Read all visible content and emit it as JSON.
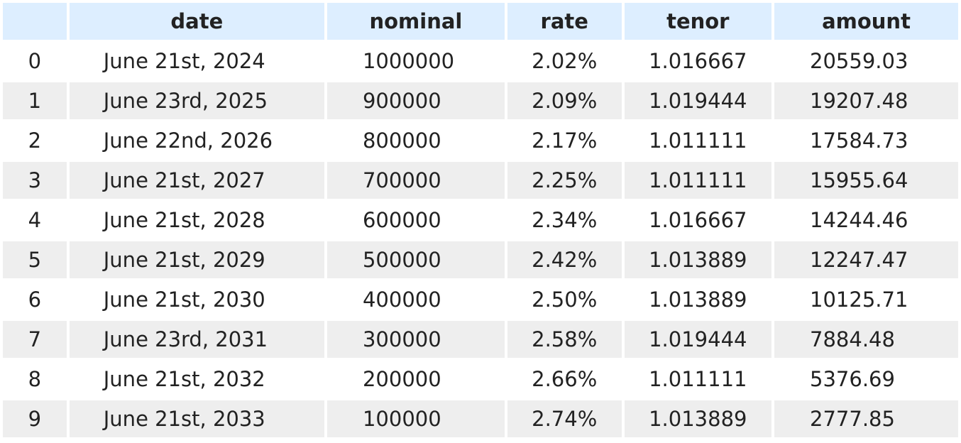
{
  "table": {
    "columns": [
      "",
      "date",
      "nominal",
      "rate",
      "tenor",
      "amount"
    ],
    "rows": [
      [
        "0",
        "June 21st, 2024",
        "1000000",
        "2.02%",
        "1.016667",
        "20559.03"
      ],
      [
        "1",
        "June 23rd, 2025",
        "900000",
        "2.09%",
        "1.019444",
        "19207.48"
      ],
      [
        "2",
        "June 22nd, 2026",
        "800000",
        "2.17%",
        "1.011111",
        "17584.73"
      ],
      [
        "3",
        "June 21st, 2027",
        "700000",
        "2.25%",
        "1.011111",
        "15955.64"
      ],
      [
        "4",
        "June 21st, 2028",
        "600000",
        "2.34%",
        "1.016667",
        "14244.46"
      ],
      [
        "5",
        "June 21st, 2029",
        "500000",
        "2.42%",
        "1.013889",
        "12247.47"
      ],
      [
        "6",
        "June 21st, 2030",
        "400000",
        "2.50%",
        "1.013889",
        "10125.71"
      ],
      [
        "7",
        "June 23rd, 2031",
        "300000",
        "2.58%",
        "1.019444",
        "7884.48"
      ],
      [
        "8",
        "June 21st, 2032",
        "200000",
        "2.66%",
        "1.011111",
        "5376.69"
      ],
      [
        "9",
        "June 21st, 2033",
        "100000",
        "2.74%",
        "1.013889",
        "2777.85"
      ]
    ]
  },
  "colors": {
    "header_bg": "#ddeeff",
    "stripe_bg": "#eeeeee",
    "row_bg": "#ffffff"
  }
}
